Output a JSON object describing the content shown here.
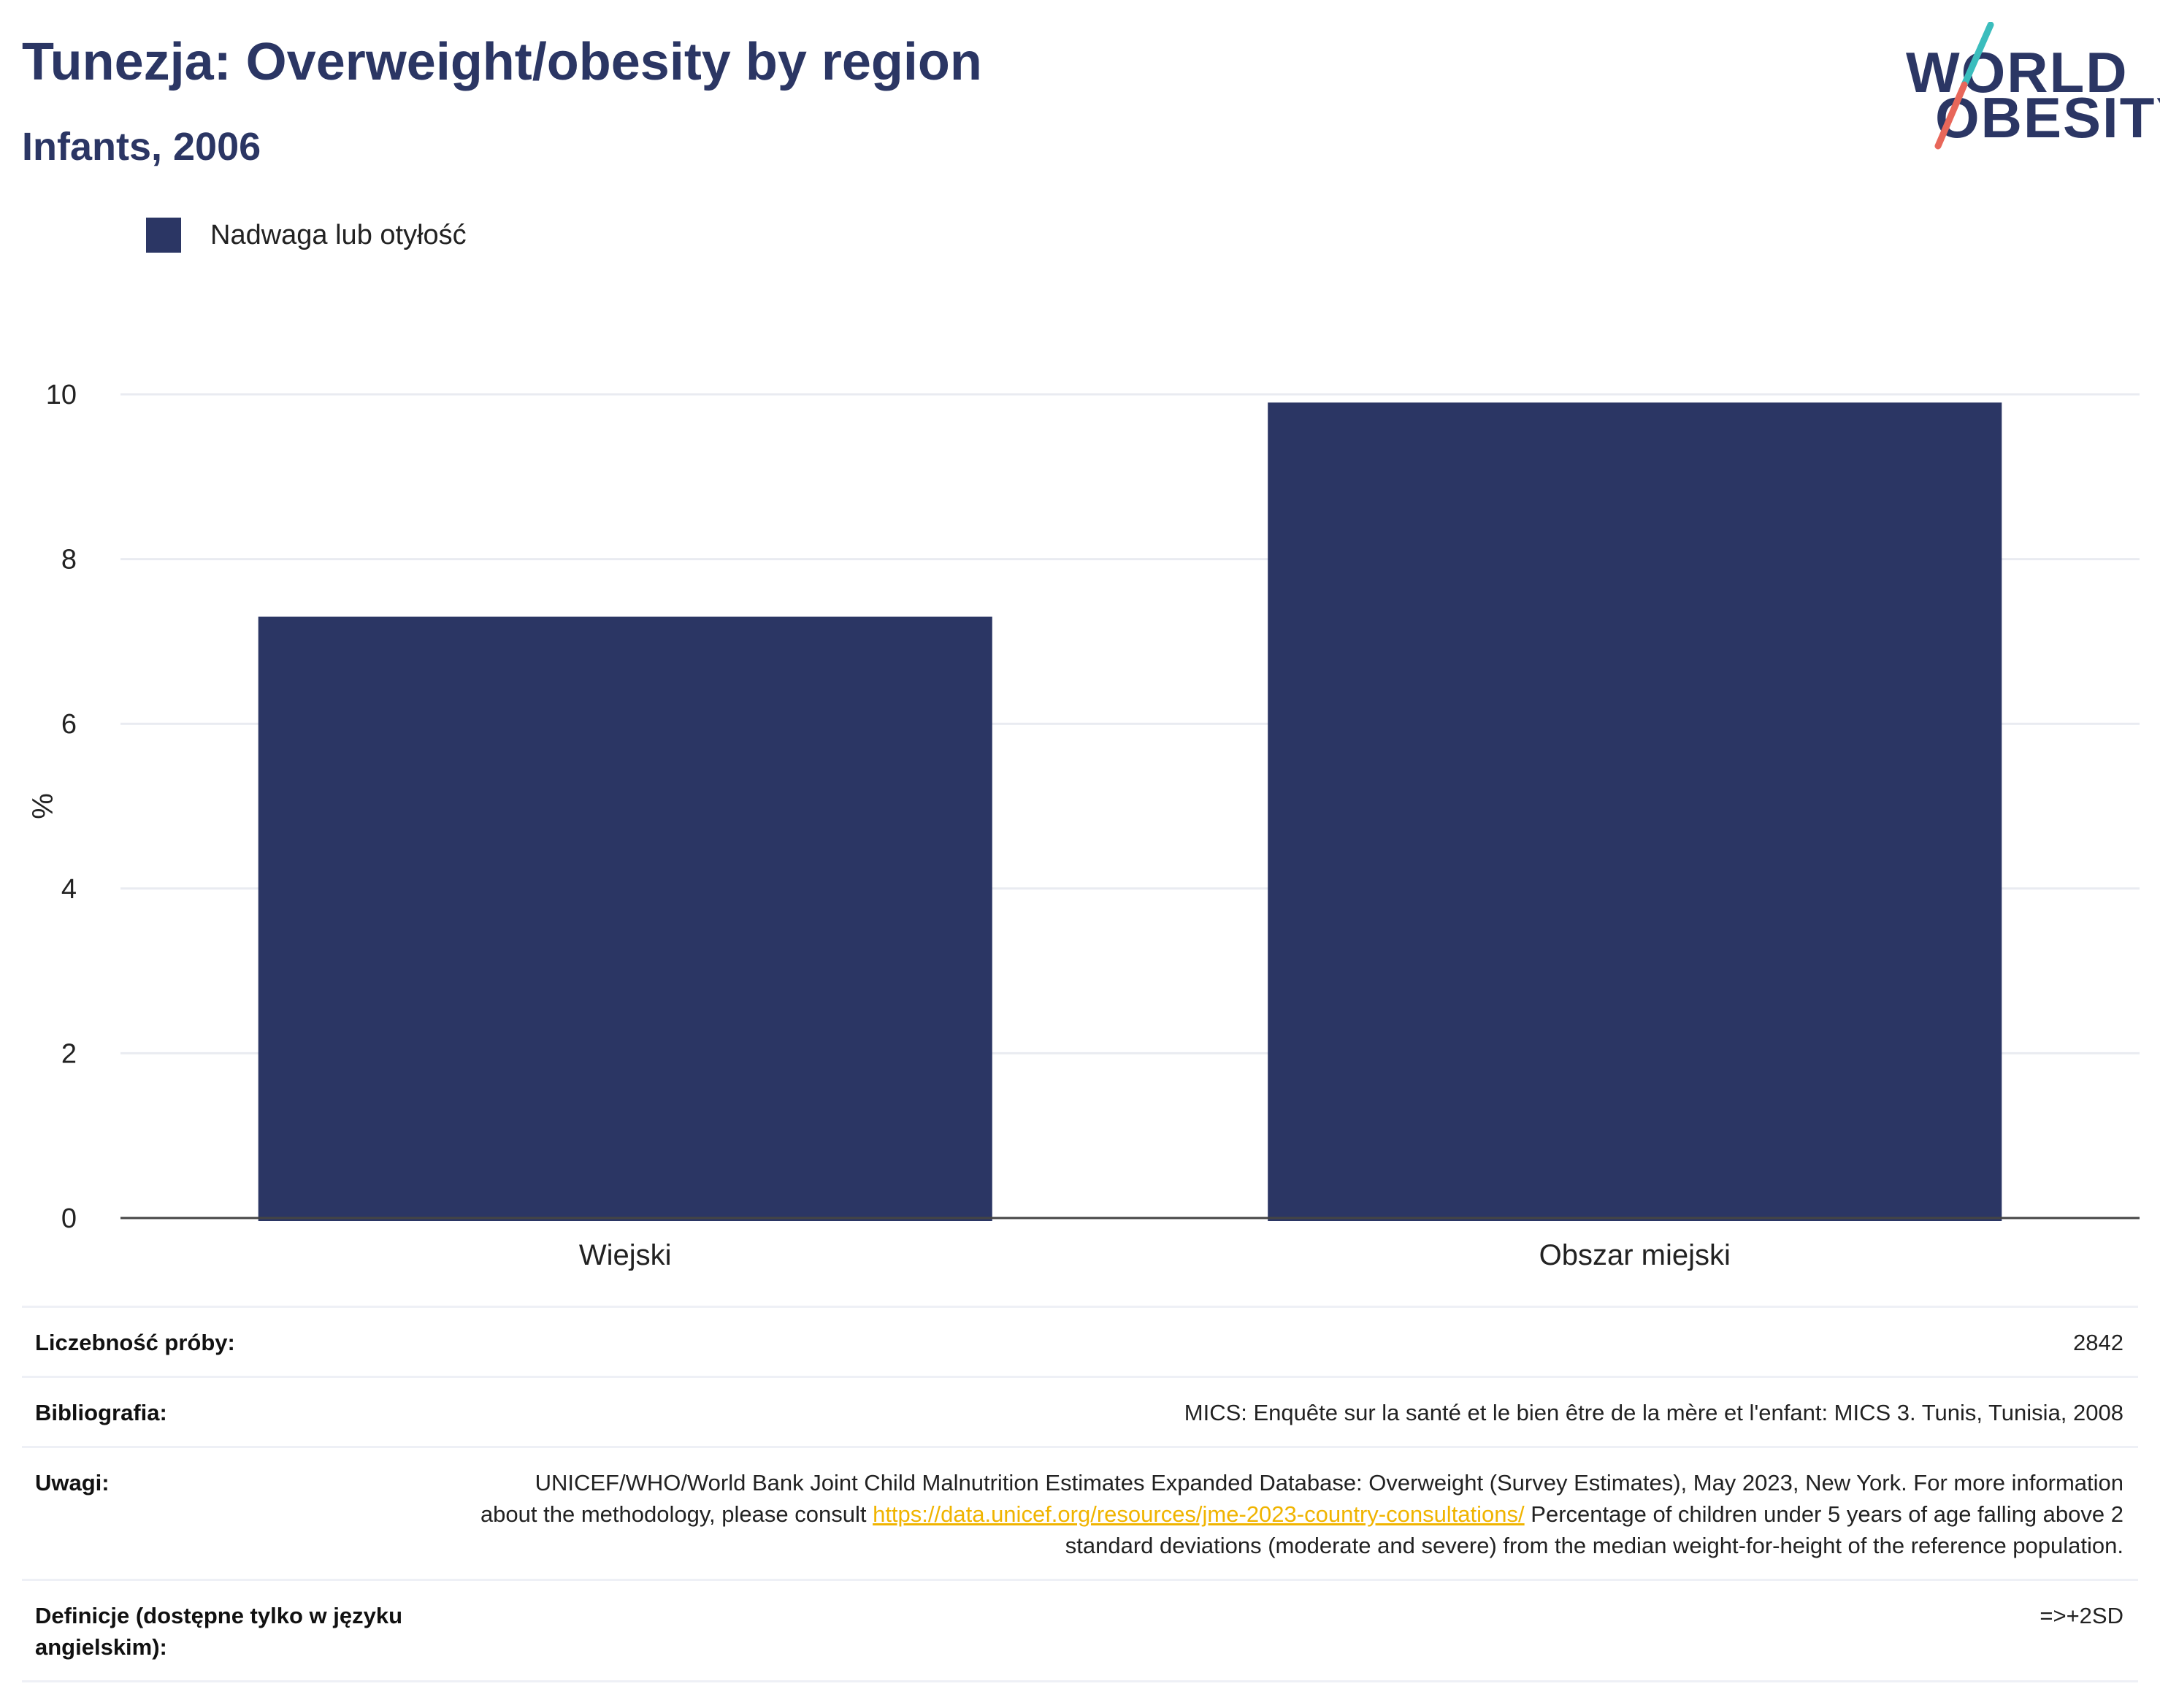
{
  "header": {
    "title": "Tunezja: Overweight/obesity by region",
    "subtitle": "Infants, 2006"
  },
  "logo": {
    "line1": "WORLD",
    "line2": "OBESITY",
    "colors": {
      "text": "#2b3664",
      "slash_top": "#3bbdbd",
      "slash_bottom": "#e8675a"
    }
  },
  "legend": {
    "label": "Nadwaga lub otyłość",
    "color": "#2b3664"
  },
  "chart_data": {
    "type": "bar",
    "categories": [
      "Wiejski",
      "Obszar miejski"
    ],
    "series": [
      {
        "name": "Nadwaga lub otyłość",
        "values": [
          7.3,
          9.9
        ],
        "color": "#2b3664"
      }
    ],
    "ylabel": "%",
    "xlabel": "",
    "ylim": [
      0,
      10
    ],
    "yticks": [
      0,
      2,
      4,
      6,
      8,
      10
    ],
    "grid": true,
    "legend_position": "top-left"
  },
  "meta": {
    "sample_label": "Liczebność próby:",
    "sample_value": "2842",
    "biblio_label": "Bibliografia:",
    "biblio_value": "MICS: Enquête sur la santé et le bien être de la mère et l'enfant: MICS 3. Tunis, Tunisia, 2008",
    "notes_label": "Uwagi:",
    "notes_text1": "UNICEF/WHO/World Bank Joint Child Malnutrition Estimates Expanded Database: Overweight (Survey Estimates), May 2023, New York. For more information about the methodology, please consult",
    "notes_link": "https://data.unicef.org/resources/jme-2023-country-consultations/",
    "notes_text2": "Percentage of children under 5 years of age falling above 2 standard deviations (moderate and severe) from the median weight-for-height of the reference population.",
    "def_label": "Definicje (dostępne tylko w języku angielskim):",
    "def_value": "=>+2SD"
  }
}
